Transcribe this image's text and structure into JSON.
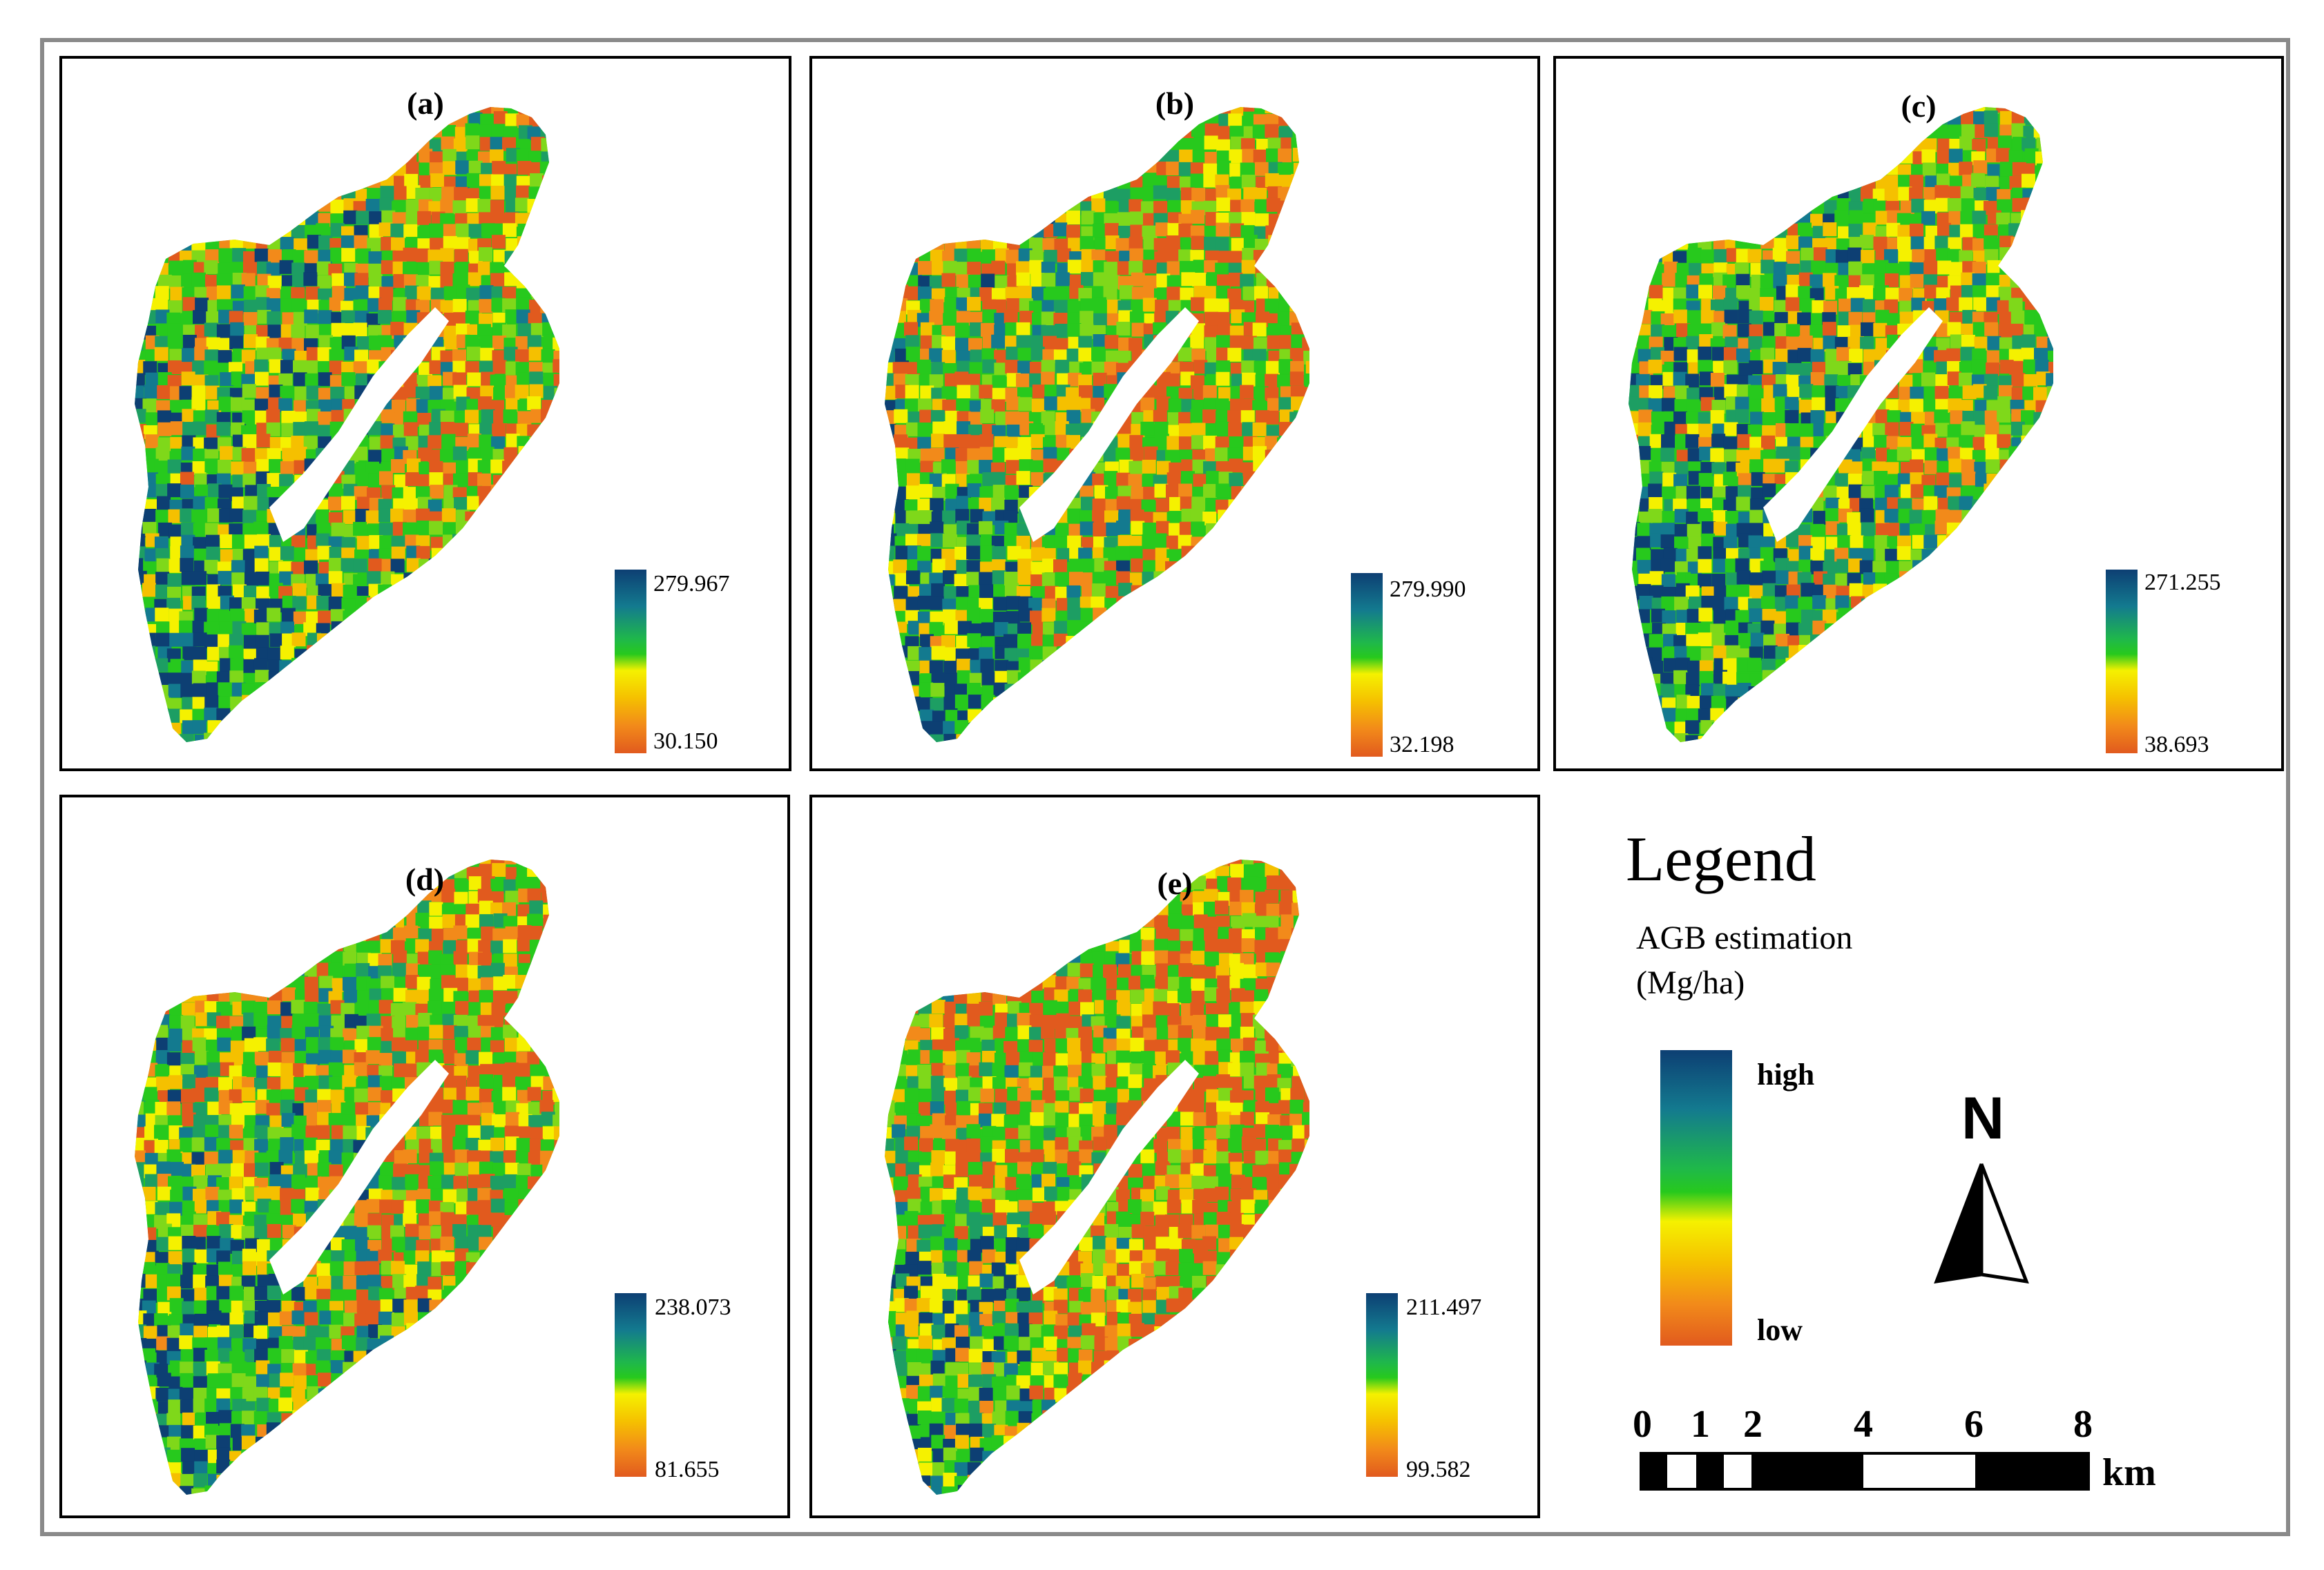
{
  "panels": [
    {
      "id": "a",
      "label": "(a)",
      "max": "279.967",
      "min": "30.150"
    },
    {
      "id": "b",
      "label": "(b)",
      "max": "279.990",
      "min": "32.198"
    },
    {
      "id": "c",
      "label": "(c)",
      "max": "271.255",
      "min": "38.693"
    },
    {
      "id": "d",
      "label": "(d)",
      "max": "238.073",
      "min": "81.655"
    },
    {
      "id": "e",
      "label": "(e)",
      "max": "211.497",
      "min": "99.582"
    }
  ],
  "legend": {
    "title": "Legend",
    "subtitle_line1": "AGB estimation",
    "subtitle_line2": "(Mg/ha)",
    "high_label": "high",
    "low_label": "low"
  },
  "north_arrow": {
    "letter": "N"
  },
  "scale_bar": {
    "ticks": [
      "0",
      "1",
      "2",
      "4",
      "6",
      "8"
    ],
    "unit": "km"
  },
  "colors": {
    "high": "#0d3f73",
    "mid_high": "#137a8f",
    "mid": "#27c91d",
    "mid_low": "#f5f100",
    "low_orange": "#f28a1a",
    "low": "#e15a1e"
  }
}
